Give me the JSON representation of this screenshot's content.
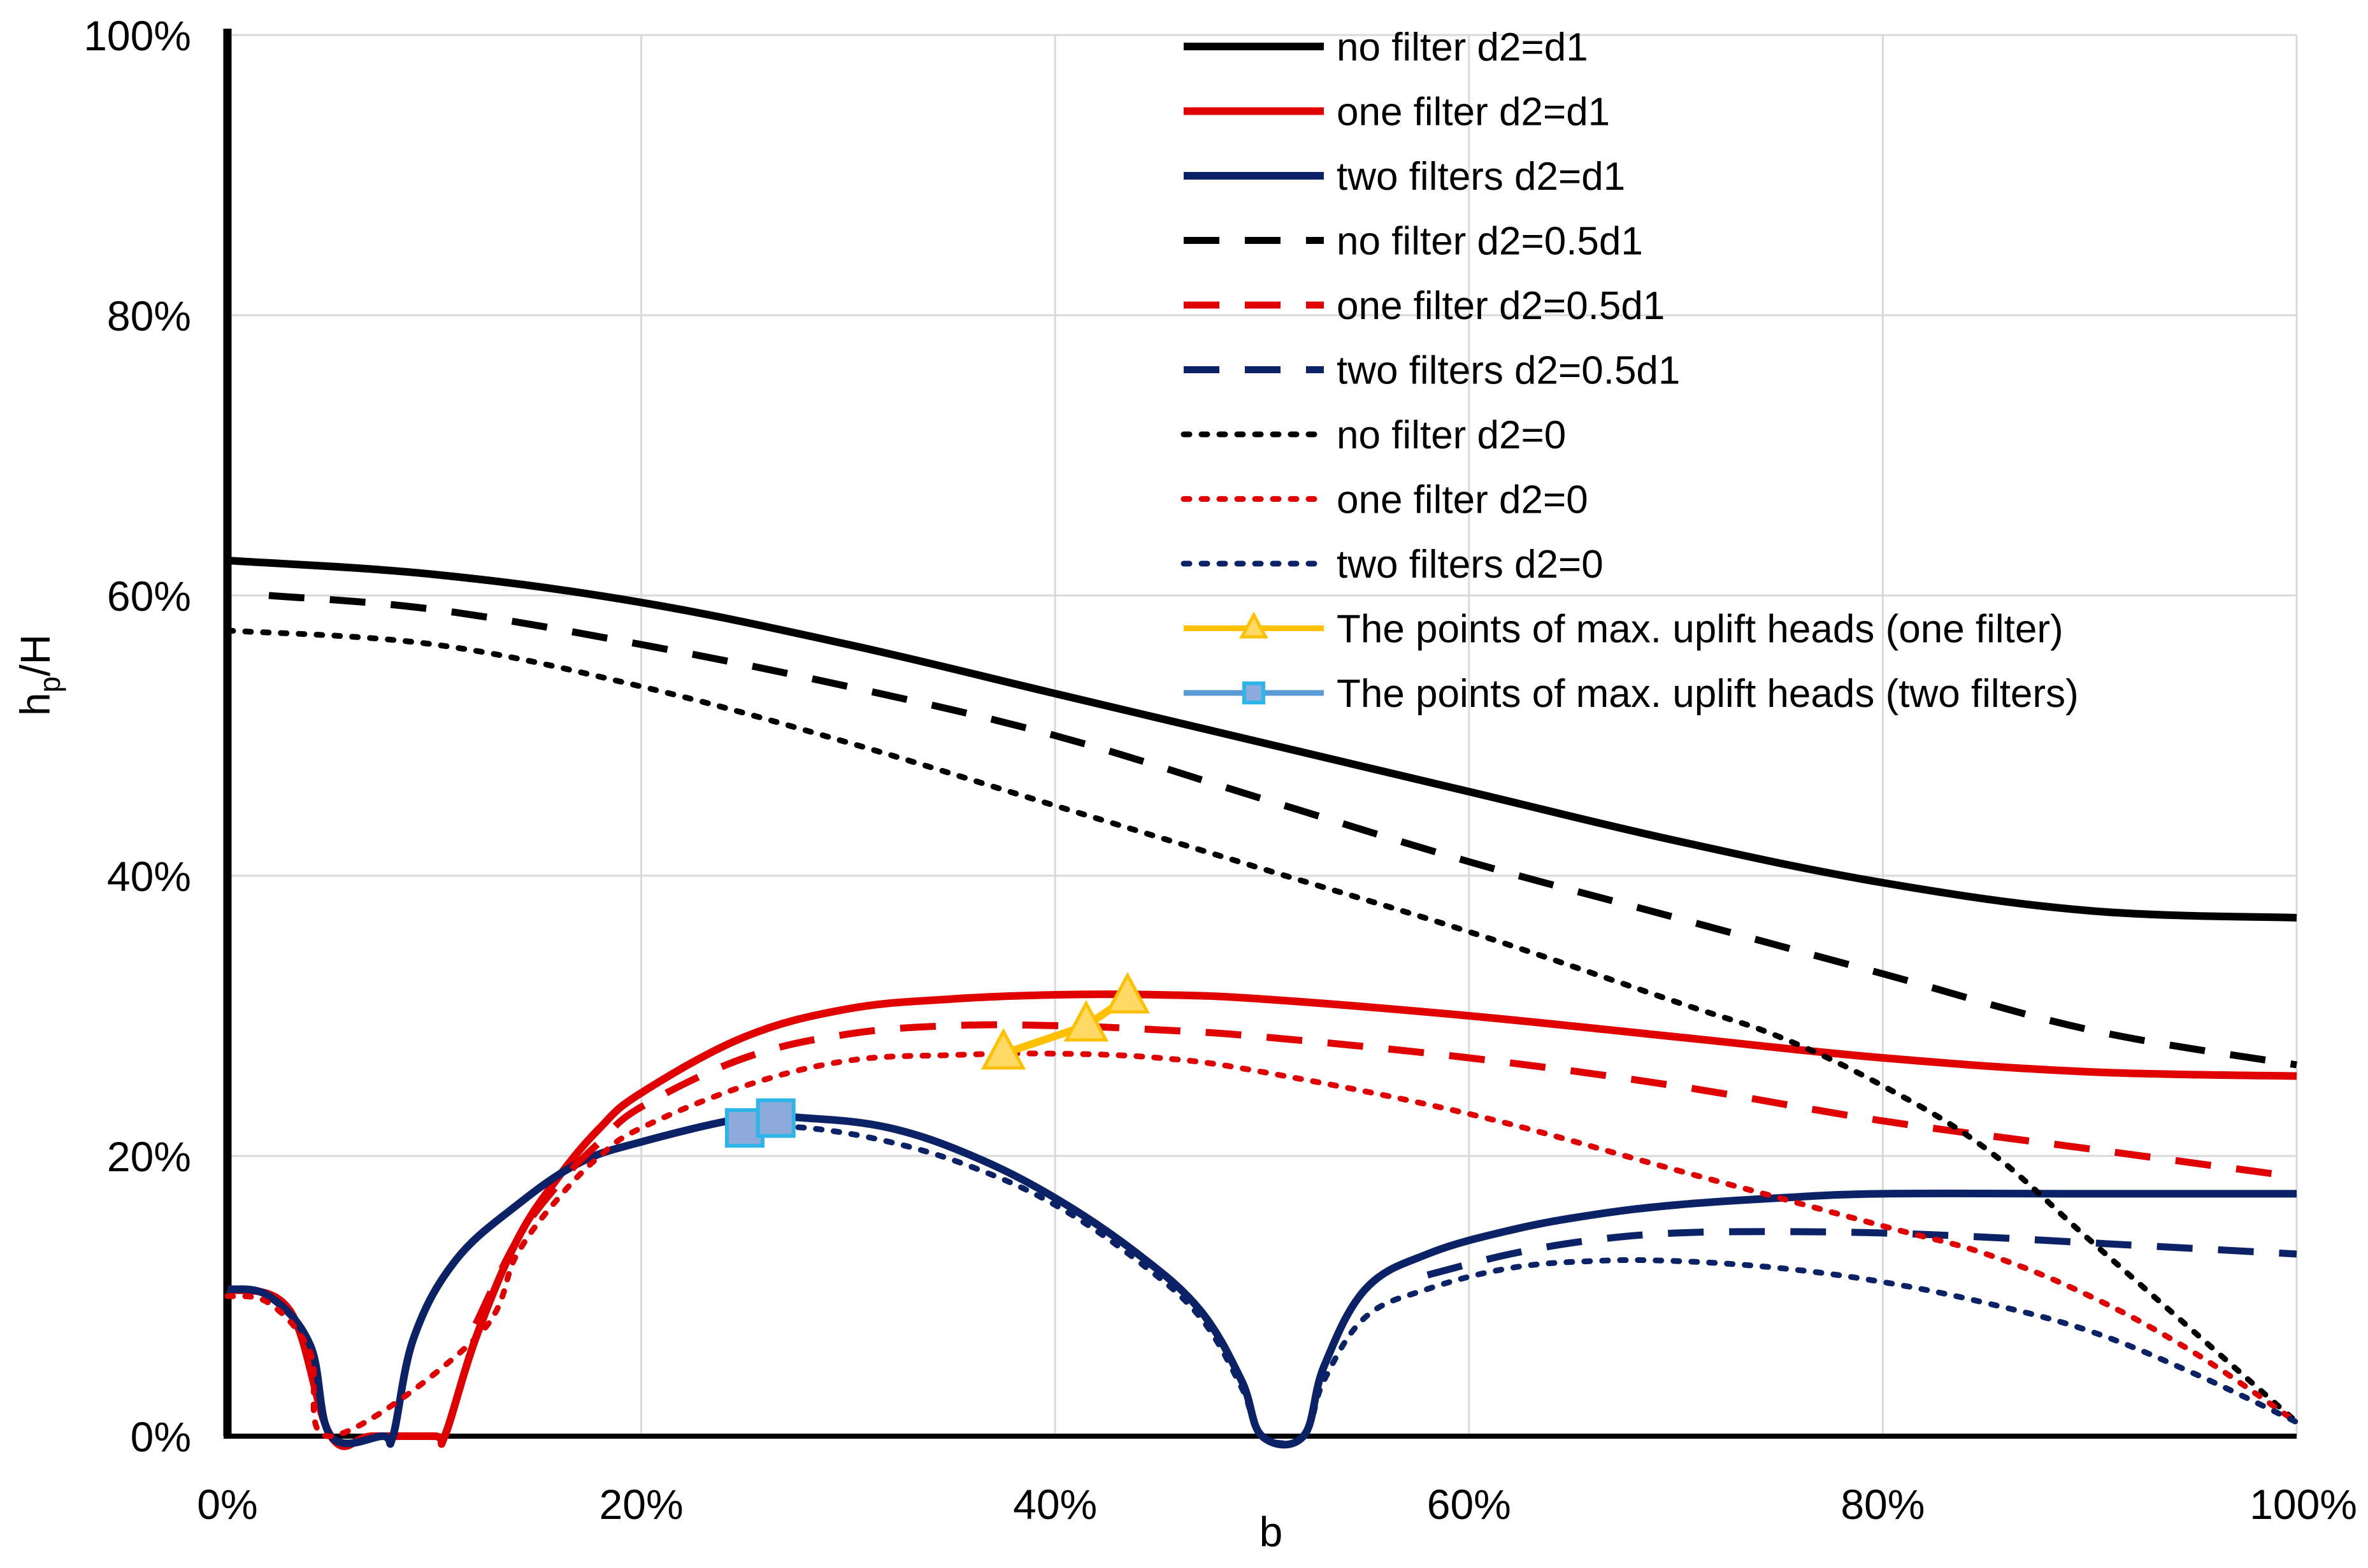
{
  "chart_data": {
    "type": "line",
    "title": "",
    "xlabel": "b",
    "ylabel": "h",
    "ylabel_sub": "p",
    "ylabel_suffix": "/H",
    "xlim": [
      0,
      100
    ],
    "ylim": [
      0,
      100
    ],
    "x_ticks": [
      0,
      20,
      40,
      60,
      80,
      100
    ],
    "y_ticks": [
      0,
      20,
      40,
      60,
      80,
      100
    ],
    "x_tick_labels": [
      "0%",
      "20%",
      "40%",
      "60%",
      "80%",
      "100%"
    ],
    "y_tick_labels": [
      "0%",
      "20%",
      "40%",
      "60%",
      "80%",
      "100%"
    ],
    "grid": true,
    "legend_position": "top-right",
    "series": [
      {
        "name": "no filter d2=d1",
        "color": "#000000",
        "dash": "solid",
        "x": [
          0,
          10,
          20,
          30,
          40,
          50,
          60,
          70,
          80,
          90,
          100
        ],
        "y": [
          62.5,
          61.5,
          59.5,
          56.5,
          53,
          49.5,
          46,
          42.5,
          39.5,
          37.5,
          37
        ]
      },
      {
        "name": "one filter d2=d1",
        "color": "#e00000",
        "dash": "solid",
        "x": [
          0,
          3,
          5,
          7,
          10,
          10.5,
          12,
          14,
          16,
          18,
          20,
          25,
          30,
          35,
          40,
          45,
          50,
          60,
          70,
          80,
          90,
          100
        ],
        "y": [
          10.5,
          9,
          0,
          0,
          0,
          0,
          7,
          14,
          18.5,
          22,
          24.5,
          28.5,
          30.5,
          31.2,
          31.5,
          31.5,
          31.2,
          30,
          28.5,
          27,
          26,
          25.7
        ]
      },
      {
        "name": "two filters d2=d1",
        "color": "#0c2266",
        "dash": "solid",
        "x": [
          0,
          2,
          4,
          5,
          7.5,
          8,
          9,
          11,
          14,
          17,
          20,
          25,
          28,
          32,
          36,
          40,
          44,
          47,
          49,
          50,
          52,
          53,
          55,
          58,
          62,
          66,
          70,
          75,
          80,
          90,
          100
        ],
        "y": [
          10.5,
          10,
          6.5,
          0,
          0,
          0,
          7,
          12.5,
          16.5,
          19.5,
          21,
          22.7,
          22.7,
          22,
          20,
          17,
          13,
          9,
          4,
          0,
          0,
          5,
          10.5,
          13,
          14.7,
          15.8,
          16.5,
          17,
          17.3,
          17.3,
          17.3
        ]
      },
      {
        "name": "no filter d2=0.5d1",
        "color": "#000000",
        "dash": "dash",
        "x": [
          2,
          10,
          20,
          30,
          40,
          50,
          60,
          70,
          80,
          90,
          100
        ],
        "y": [
          60,
          59,
          56.5,
          53.5,
          50,
          45.5,
          41,
          37,
          33,
          29,
          26.5
        ]
      },
      {
        "name": "one filter d2=0.5d1",
        "color": "#e00000",
        "dash": "dash",
        "x": [
          12,
          14,
          16,
          18,
          20,
          25,
          30,
          35,
          40,
          45,
          50,
          60,
          70,
          80,
          90,
          100
        ],
        "y": [
          8,
          14,
          18,
          21,
          23.5,
          27,
          28.7,
          29.3,
          29.3,
          29,
          28.5,
          27,
          25,
          22.5,
          20.5,
          18.5
        ]
      },
      {
        "name": "two filters d2=0.5d1",
        "color": "#0c2266",
        "dash": "dash",
        "x": [
          58,
          62,
          66,
          70,
          75,
          80,
          85,
          90,
          100
        ],
        "y": [
          11.5,
          13,
          14,
          14.5,
          14.6,
          14.5,
          14.2,
          13.8,
          13
        ]
      },
      {
        "name": "no filter d2=0",
        "color": "#000000",
        "dash": "dot",
        "x": [
          0,
          10,
          20,
          30,
          40,
          50,
          60,
          70,
          75,
          80,
          85,
          90,
          95,
          100
        ],
        "y": [
          57.5,
          56.5,
          53.5,
          49.5,
          45,
          40.5,
          36,
          31,
          28.5,
          25,
          20.5,
          14,
          7.5,
          1
        ]
      },
      {
        "name": "one filter d2=0",
        "color": "#e00000",
        "dash": "dot",
        "x": [
          0,
          2,
          4,
          5,
          12,
          14,
          16,
          18,
          20,
          25,
          30,
          35,
          40,
          45,
          50,
          60,
          70,
          80,
          85,
          90,
          95,
          100
        ],
        "y": [
          10,
          9.5,
          6,
          0,
          7,
          13,
          17,
          20,
          22,
          25,
          26.8,
          27.2,
          27.3,
          27,
          26,
          23,
          19,
          15,
          13,
          10,
          6,
          1
        ]
      },
      {
        "name": "two filters d2=0",
        "color": "#0c2266",
        "dash": "dot",
        "x": [
          25,
          28,
          32,
          36,
          40,
          44,
          47,
          49,
          50,
          52,
          53,
          55,
          58,
          62,
          66,
          70,
          75,
          80,
          85,
          90,
          95,
          100
        ],
        "y": [
          22,
          22,
          21,
          19.2,
          16.5,
          12.5,
          8.5,
          3.5,
          0,
          0,
          4,
          8.5,
          10.5,
          12,
          12.5,
          12.5,
          12,
          11,
          9.5,
          7.5,
          4.5,
          1
        ]
      },
      {
        "name": "The points of max. uplift heads (one filter)",
        "color": "#ffc000",
        "marker": "triangle",
        "x": [
          37.5,
          41.5,
          43.5
        ],
        "y": [
          27.3,
          29.3,
          31.3
        ]
      },
      {
        "name": "The points of max. uplift heads (two filters)",
        "color": "#5b9bd5",
        "marker": "square",
        "x": [
          25,
          26.5
        ],
        "y": [
          22,
          22.7
        ]
      }
    ]
  }
}
